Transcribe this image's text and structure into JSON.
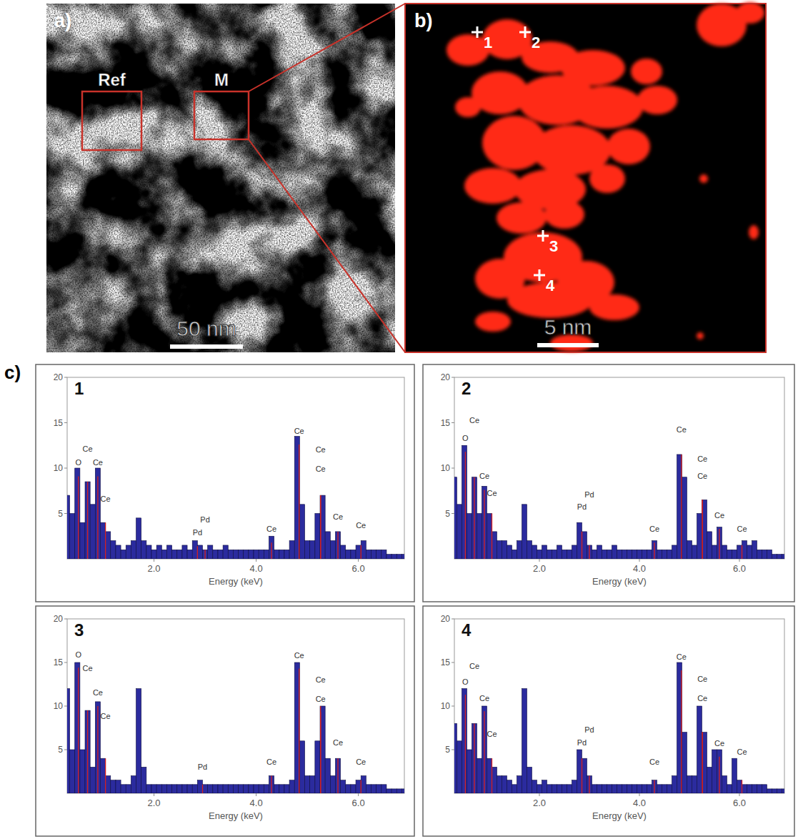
{
  "figure": {
    "panel_a": {
      "letter": "a)",
      "regions": [
        "Ref",
        "M"
      ],
      "scale_bar": "50 nm"
    },
    "panel_b": {
      "letter": "b)",
      "points": [
        "1",
        "2",
        "3",
        "4"
      ],
      "scale_bar": "5 nm"
    },
    "panel_c": {
      "letter": "c)"
    }
  },
  "chart_data": [
    {
      "type": "bar",
      "title": "1",
      "x_label": "Energy (keV)",
      "color": "#2b2b9e",
      "x": [
        0.3,
        0.4,
        0.5,
        0.6,
        0.7,
        0.8,
        0.9,
        1.0,
        1.1,
        1.2,
        1.3,
        1.4,
        1.5,
        1.6,
        1.7,
        1.8,
        1.9,
        2.0,
        2.1,
        2.2,
        2.3,
        2.4,
        2.5,
        2.6,
        2.7,
        2.8,
        2.9,
        3.0,
        3.1,
        3.2,
        3.3,
        3.4,
        3.5,
        3.6,
        3.7,
        3.8,
        3.9,
        4.0,
        4.1,
        4.2,
        4.3,
        4.4,
        4.5,
        4.6,
        4.7,
        4.8,
        4.9,
        5.0,
        5.1,
        5.2,
        5.3,
        5.4,
        5.5,
        5.6,
        5.7,
        5.8,
        5.9,
        6.0,
        6.1,
        6.2,
        6.3,
        6.4,
        6.5,
        6.6,
        6.7,
        6.8,
        6.9
      ],
      "values": [
        7,
        5,
        10,
        4,
        8.5,
        6,
        10,
        4,
        3,
        2,
        1.5,
        1,
        1.5,
        2,
        4.5,
        2,
        1.5,
        1,
        1.5,
        1,
        1.5,
        1,
        1,
        1.5,
        1,
        2,
        1.5,
        1,
        1.5,
        1,
        1,
        1.5,
        1,
        1,
        1,
        1,
        1,
        1,
        1,
        1,
        2.5,
        1,
        1,
        1,
        2,
        13.5,
        6,
        2,
        2,
        5,
        7,
        3,
        2,
        3,
        1.5,
        1,
        1,
        1.5,
        2,
        1,
        1,
        1,
        1,
        0.5,
        0.5,
        0.5,
        0.5
      ],
      "xlim": [
        0.3,
        6.9
      ],
      "xticks": [
        {
          "value": 2,
          "label": "2.0"
        },
        {
          "value": 4,
          "label": "4.0"
        },
        {
          "value": 6,
          "label": "6.0"
        }
      ],
      "ylim": [
        0,
        20
      ],
      "yticks": [
        5,
        10,
        15,
        20
      ],
      "annotations": [
        {
          "text": "O",
          "x": 0.52,
          "y": 10.3
        },
        {
          "text": "Ce",
          "x": 0.7,
          "y": 11.8
        },
        {
          "text": "Ce",
          "x": 0.9,
          "y": 10.3
        },
        {
          "text": "Ce",
          "x": 1.05,
          "y": 6.3
        },
        {
          "text": "Pd",
          "x": 2.85,
          "y": 2.6
        },
        {
          "text": "Pd",
          "x": 3.0,
          "y": 4.0
        },
        {
          "text": "Ce",
          "x": 4.3,
          "y": 3.0
        },
        {
          "text": "Ce",
          "x": 4.84,
          "y": 13.8
        },
        {
          "text": "Ce",
          "x": 5.26,
          "y": 11.7
        },
        {
          "text": "Ce",
          "x": 5.26,
          "y": 9.6
        },
        {
          "text": "Ce",
          "x": 5.6,
          "y": 4.3
        },
        {
          "text": "Ce",
          "x": 6.05,
          "y": 3.4
        }
      ]
    },
    {
      "type": "bar",
      "title": "2",
      "x_label": "Energy (keV)",
      "color": "#2b2b9e",
      "x": [
        0.3,
        0.4,
        0.5,
        0.6,
        0.7,
        0.8,
        0.9,
        1.0,
        1.1,
        1.2,
        1.3,
        1.4,
        1.5,
        1.6,
        1.7,
        1.8,
        1.9,
        2.0,
        2.1,
        2.2,
        2.3,
        2.4,
        2.5,
        2.6,
        2.7,
        2.8,
        2.9,
        3.0,
        3.1,
        3.2,
        3.3,
        3.4,
        3.5,
        3.6,
        3.7,
        3.8,
        3.9,
        4.0,
        4.1,
        4.2,
        4.3,
        4.4,
        4.5,
        4.6,
        4.7,
        4.8,
        4.9,
        5.0,
        5.1,
        5.2,
        5.3,
        5.4,
        5.5,
        5.6,
        5.7,
        5.8,
        5.9,
        6.0,
        6.1,
        6.2,
        6.3,
        6.4,
        6.5,
        6.6,
        6.7,
        6.8,
        6.9
      ],
      "values": [
        9,
        6,
        12.5,
        5,
        9,
        5,
        8,
        5,
        3,
        2,
        2,
        1.5,
        1,
        2,
        6,
        2,
        1.5,
        1,
        1.5,
        1,
        1,
        1.5,
        1,
        1,
        1.5,
        4,
        3,
        1.5,
        1,
        1.5,
        1,
        1,
        1.5,
        1,
        1,
        1,
        1,
        1,
        1,
        1,
        2,
        1,
        1,
        1,
        1.5,
        11.5,
        9,
        2,
        1.5,
        5,
        6.5,
        3,
        1.5,
        3.5,
        1.5,
        1,
        1,
        1.5,
        2,
        1.5,
        2,
        1,
        1,
        1,
        0.5,
        0.5,
        0.5
      ],
      "xlim": [
        0.3,
        6.9
      ],
      "xticks": [
        {
          "value": 2,
          "label": "2.0"
        },
        {
          "value": 4,
          "label": "4.0"
        },
        {
          "value": 6,
          "label": "6.0"
        }
      ],
      "ylim": [
        0,
        20
      ],
      "yticks": [
        5,
        10,
        15,
        20
      ],
      "annotations": [
        {
          "text": "O",
          "x": 0.52,
          "y": 13
        },
        {
          "text": "Ce",
          "x": 0.7,
          "y": 15
        },
        {
          "text": "Ce",
          "x": 0.9,
          "y": 8.8
        },
        {
          "text": "Ce",
          "x": 1.05,
          "y": 6.9
        },
        {
          "text": "Pd",
          "x": 2.85,
          "y": 5.4
        },
        {
          "text": "Pd",
          "x": 3.0,
          "y": 6.8
        },
        {
          "text": "Ce",
          "x": 4.3,
          "y": 3.0
        },
        {
          "text": "Ce",
          "x": 4.84,
          "y": 13.9
        },
        {
          "text": "Ce",
          "x": 5.26,
          "y": 10.7
        },
        {
          "text": "Ce",
          "x": 5.26,
          "y": 8.8
        },
        {
          "text": "Ce",
          "x": 5.6,
          "y": 4.5
        },
        {
          "text": "Ce",
          "x": 6.05,
          "y": 3.0
        }
      ]
    },
    {
      "type": "bar",
      "title": "3",
      "x_label": "Energy (keV)",
      "color": "#2b2b9e",
      "x": [
        0.3,
        0.4,
        0.5,
        0.6,
        0.7,
        0.8,
        0.9,
        1.0,
        1.1,
        1.2,
        1.3,
        1.4,
        1.5,
        1.6,
        1.7,
        1.8,
        1.9,
        2.0,
        2.1,
        2.2,
        2.3,
        2.4,
        2.5,
        2.6,
        2.7,
        2.8,
        2.9,
        3.0,
        3.1,
        3.2,
        3.3,
        3.4,
        3.5,
        3.6,
        3.7,
        3.8,
        3.9,
        4.0,
        4.1,
        4.2,
        4.3,
        4.4,
        4.5,
        4.6,
        4.7,
        4.8,
        4.9,
        5.0,
        5.1,
        5.2,
        5.3,
        5.4,
        5.5,
        5.6,
        5.7,
        5.8,
        5.9,
        6.0,
        6.1,
        6.2,
        6.3,
        6.4,
        6.5,
        6.6,
        6.7,
        6.8,
        6.9
      ],
      "values": [
        12,
        5,
        15,
        5,
        9.5,
        3,
        10.5,
        4,
        2,
        1.5,
        1.5,
        1,
        1,
        2,
        12,
        3,
        1,
        1,
        1,
        1,
        1,
        1,
        1,
        1,
        1,
        1,
        1.5,
        1,
        1,
        1,
        1,
        1,
        1,
        1,
        1,
        1,
        1,
        1,
        1,
        1,
        2,
        1,
        1,
        1,
        1.5,
        15,
        6,
        2,
        2,
        6,
        10,
        4,
        2,
        4,
        1.5,
        1,
        1,
        1.5,
        2,
        1,
        1,
        1,
        1,
        0.5,
        0.5,
        0.5,
        0.5
      ],
      "xlim": [
        0.3,
        6.9
      ],
      "xticks": [
        {
          "value": 2,
          "label": "2.0"
        },
        {
          "value": 4,
          "label": "4.0"
        },
        {
          "value": 6,
          "label": "6.0"
        }
      ],
      "ylim": [
        0,
        20
      ],
      "yticks": [
        5,
        10,
        15,
        20
      ],
      "annotations": [
        {
          "text": "O",
          "x": 0.52,
          "y": 15.6
        },
        {
          "text": "Ce",
          "x": 0.7,
          "y": 14
        },
        {
          "text": "Ce",
          "x": 0.9,
          "y": 11.2
        },
        {
          "text": "Ce",
          "x": 1.05,
          "y": 8.5
        },
        {
          "text": "Pd",
          "x": 2.95,
          "y": 2.7
        },
        {
          "text": "Ce",
          "x": 4.3,
          "y": 3.3
        },
        {
          "text": "Ce",
          "x": 4.84,
          "y": 15.5
        },
        {
          "text": "Ce",
          "x": 5.26,
          "y": 12.7
        },
        {
          "text": "Ce",
          "x": 5.26,
          "y": 10.5
        },
        {
          "text": "Ce",
          "x": 5.6,
          "y": 5.5
        },
        {
          "text": "Ce",
          "x": 6.05,
          "y": 3.3
        }
      ]
    },
    {
      "type": "bar",
      "title": "4",
      "x_label": "Energy (keV)",
      "color": "#2b2b9e",
      "x": [
        0.3,
        0.4,
        0.5,
        0.6,
        0.7,
        0.8,
        0.9,
        1.0,
        1.1,
        1.2,
        1.3,
        1.4,
        1.5,
        1.6,
        1.7,
        1.8,
        1.9,
        2.0,
        2.1,
        2.2,
        2.3,
        2.4,
        2.5,
        2.6,
        2.7,
        2.8,
        2.9,
        3.0,
        3.1,
        3.2,
        3.3,
        3.4,
        3.5,
        3.6,
        3.7,
        3.8,
        3.9,
        4.0,
        4.1,
        4.2,
        4.3,
        4.4,
        4.5,
        4.6,
        4.7,
        4.8,
        4.9,
        5.0,
        5.1,
        5.2,
        5.3,
        5.4,
        5.5,
        5.6,
        5.7,
        5.8,
        5.9,
        6.0,
        6.1,
        6.2,
        6.3,
        6.4,
        6.5,
        6.6,
        6.7,
        6.8,
        6.9
      ],
      "values": [
        8,
        6,
        12,
        5,
        8,
        4,
        10,
        4,
        3,
        2,
        2,
        1.5,
        1,
        2,
        12,
        3,
        1.5,
        1,
        1.5,
        1,
        1,
        1,
        1,
        1,
        1.5,
        5,
        4,
        2,
        1,
        1,
        1,
        1,
        1,
        1,
        1,
        1,
        1,
        1,
        1,
        1,
        1.5,
        1,
        1,
        1,
        2,
        15,
        7,
        2,
        2,
        10,
        7,
        3,
        5,
        5,
        2,
        1,
        4,
        1.5,
        1,
        1,
        1,
        1,
        1,
        0.5,
        0.5,
        0.5,
        0.5
      ],
      "xlim": [
        0.3,
        6.9
      ],
      "xticks": [
        {
          "value": 2,
          "label": "2.0"
        },
        {
          "value": 4,
          "label": "4.0"
        },
        {
          "value": 6,
          "label": "6.0"
        }
      ],
      "ylim": [
        0,
        20
      ],
      "yticks": [
        5,
        10,
        15,
        20
      ],
      "annotations": [
        {
          "text": "O",
          "x": 0.52,
          "y": 12.5
        },
        {
          "text": "Ce",
          "x": 0.7,
          "y": 14.3
        },
        {
          "text": "Ce",
          "x": 0.9,
          "y": 10.6
        },
        {
          "text": "Ce",
          "x": 1.05,
          "y": 6.5
        },
        {
          "text": "Pd",
          "x": 2.85,
          "y": 5.5
        },
        {
          "text": "Pd",
          "x": 3.0,
          "y": 7.0
        },
        {
          "text": "Ce",
          "x": 4.3,
          "y": 3.3
        },
        {
          "text": "Ce",
          "x": 4.84,
          "y": 15.3
        },
        {
          "text": "Ce",
          "x": 5.26,
          "y": 12.8
        },
        {
          "text": "Ce",
          "x": 5.26,
          "y": 10.6
        },
        {
          "text": "Ce",
          "x": 5.6,
          "y": 5.4
        },
        {
          "text": "Ce",
          "x": 6.05,
          "y": 4.4
        }
      ]
    }
  ]
}
